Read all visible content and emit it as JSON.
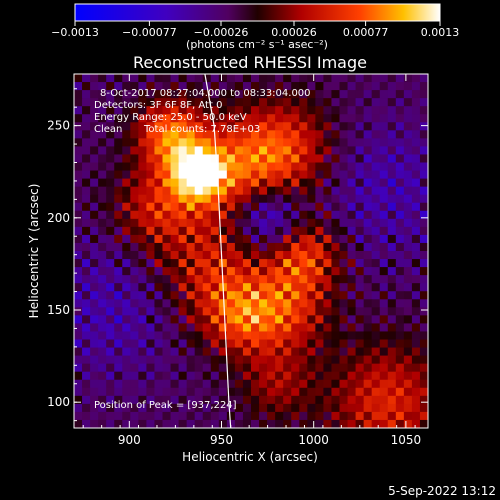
{
  "chart_data": {
    "type": "heatmap",
    "title": "Reconstructed RHESSI Image",
    "xlabel": "Heliocentric X (arcsec)",
    "ylabel": "Heliocentric Y (arcsec)",
    "xlim": [
      870,
      1062
    ],
    "ylim": [
      86,
      278
    ],
    "x_ticks": [
      900,
      950,
      1000,
      1050
    ],
    "y_ticks": [
      100,
      150,
      200,
      250
    ],
    "colorbar": {
      "ticks": [
        -0.0013,
        -0.00077,
        -0.00026,
        0.00026,
        0.00077,
        0.0013
      ],
      "tick_labels": [
        "−0.0013",
        "−0.00077",
        "−0.00026",
        "0.00026",
        "0.00077",
        "0.0013"
      ],
      "unit_label": "(photons cm⁻² s⁻¹ asec⁻²)",
      "range": [
        -0.0013,
        0.0013
      ]
    },
    "annotations": {
      "time_range": "8-Oct-2017 08:27:04.000 to 08:33:04.000",
      "detectors": "Detectors: 3F 6F 8F, Att 0",
      "energy": "Energy Range: 25.0 - 50.0 keV",
      "method": "Clean",
      "counts": "Total counts: 7.78E+03",
      "peak": "Position of Peak = [937,224]"
    },
    "peak": [
      937,
      224
    ],
    "limb_arc": [
      [
        941,
        278
      ],
      [
        946,
        250
      ],
      [
        948,
        220
      ],
      [
        950,
        180
      ],
      [
        952,
        140
      ],
      [
        954,
        100
      ],
      [
        955,
        86
      ]
    ],
    "sources": [
      {
        "x": 937,
        "y": 224,
        "sigma": 10,
        "amp": 1.0
      },
      {
        "x": 922,
        "y": 245,
        "sigma": 13,
        "amp": 0.75
      },
      {
        "x": 958,
        "y": 225,
        "sigma": 20,
        "amp": 0.6
      },
      {
        "x": 985,
        "y": 238,
        "sigma": 18,
        "amp": 0.55
      },
      {
        "x": 915,
        "y": 205,
        "sigma": 16,
        "amp": 0.5
      },
      {
        "x": 945,
        "y": 170,
        "sigma": 20,
        "amp": 0.5
      },
      {
        "x": 995,
        "y": 180,
        "sigma": 14,
        "amp": 0.6
      },
      {
        "x": 985,
        "y": 150,
        "sigma": 16,
        "amp": 0.55
      },
      {
        "x": 960,
        "y": 145,
        "sigma": 14,
        "amp": 0.5
      },
      {
        "x": 1040,
        "y": 100,
        "sigma": 22,
        "amp": 0.55
      },
      {
        "x": 980,
        "y": 110,
        "sigma": 14,
        "amp": 0.35
      },
      {
        "x": 975,
        "y": 200,
        "sigma": 13,
        "amp": -0.6
      },
      {
        "x": 890,
        "y": 150,
        "sigma": 25,
        "amp": -0.25
      },
      {
        "x": 1040,
        "y": 215,
        "sigma": 25,
        "amp": -0.25
      }
    ],
    "background_level": -0.15
  },
  "footer": {
    "date": "5-Sep-2022 13:12"
  }
}
